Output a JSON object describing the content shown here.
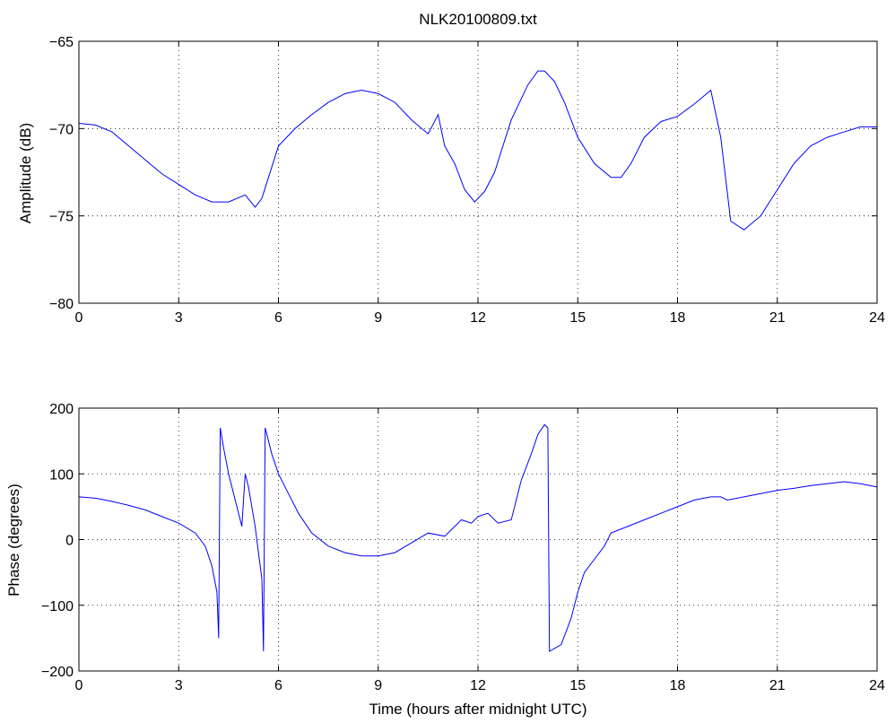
{
  "chart_data": [
    {
      "type": "line",
      "title": "NLK20100809.txt",
      "xlabel": "",
      "ylabel": "Amplitude (dB)",
      "xlim": [
        0,
        24
      ],
      "ylim": [
        -80,
        -65
      ],
      "xticks": [
        0,
        3,
        6,
        9,
        12,
        15,
        18,
        21,
        24
      ],
      "yticks": [
        -80,
        -75,
        -70,
        -65
      ],
      "grid": true,
      "series": [
        {
          "color": "#0000ff",
          "x": [
            0,
            0.5,
            1,
            1.5,
            2,
            2.5,
            3,
            3.5,
            4,
            4.5,
            5,
            5.3,
            5.5,
            6,
            6.5,
            7,
            7.5,
            8,
            8.5,
            9,
            9.5,
            10,
            10.5,
            10.8,
            11,
            11.3,
            11.6,
            11.9,
            12.2,
            12.5,
            13,
            13.5,
            13.8,
            14,
            14.3,
            14.6,
            15,
            15.5,
            16,
            16.3,
            16.6,
            17,
            17.5,
            18,
            18.5,
            19,
            19.3,
            19.6,
            20,
            20.5,
            21,
            21.5,
            22,
            22.5,
            23,
            23.5,
            24
          ],
          "y": [
            -69.7,
            -69.8,
            -70.2,
            -71,
            -71.8,
            -72.6,
            -73.2,
            -73.8,
            -74.2,
            -74.2,
            -73.8,
            -74.5,
            -74,
            -71,
            -70,
            -69.2,
            -68.5,
            -68,
            -67.8,
            -68,
            -68.5,
            -69.5,
            -70.3,
            -69.2,
            -71,
            -72,
            -73.5,
            -74.2,
            -73.6,
            -72.5,
            -69.5,
            -67.5,
            -66.7,
            -66.7,
            -67.3,
            -68.5,
            -70.5,
            -72,
            -72.8,
            -72.8,
            -72,
            -70.5,
            -69.6,
            -69.3,
            -68.6,
            -67.8,
            -70.5,
            -75.3,
            -75.8,
            -75,
            -73.5,
            -72,
            -71,
            -70.5,
            -70.2,
            -69.9,
            -69.9
          ]
        }
      ]
    },
    {
      "type": "line",
      "title": "",
      "xlabel": "Time (hours after midnight UTC)",
      "ylabel": "Phase (degrees)",
      "xlim": [
        0,
        24
      ],
      "ylim": [
        -200,
        200
      ],
      "xticks": [
        0,
        3,
        6,
        9,
        12,
        15,
        18,
        21,
        24
      ],
      "yticks": [
        -200,
        -100,
        0,
        100,
        200
      ],
      "grid": true,
      "series": [
        {
          "color": "#0000ff",
          "x": [
            0,
            0.5,
            1,
            1.5,
            2,
            2.5,
            3,
            3.5,
            3.8,
            4,
            4.15,
            4.2,
            4.25,
            4.35,
            4.5,
            4.7,
            4.9,
            5.0,
            5.1,
            5.3,
            5.5,
            5.55,
            5.6,
            5.8,
            6,
            6.3,
            6.6,
            7,
            7.5,
            8,
            8.5,
            9,
            9.5,
            10,
            10.5,
            11,
            11.3,
            11.5,
            11.8,
            12,
            12.3,
            12.6,
            13,
            13.3,
            13.6,
            13.8,
            14,
            14.1,
            14.15,
            14.5,
            14.8,
            15,
            15.2,
            15.5,
            15.8,
            16,
            16.5,
            17,
            17.5,
            18,
            18.5,
            19,
            19.3,
            19.5,
            20,
            20.5,
            21,
            21.5,
            22,
            22.5,
            23,
            23.5,
            24
          ],
          "y": [
            65,
            63,
            58,
            52,
            45,
            35,
            25,
            10,
            -10,
            -40,
            -80,
            -150,
            170,
            140,
            100,
            60,
            20,
            100,
            80,
            20,
            -60,
            -170,
            170,
            130,
            100,
            70,
            40,
            10,
            -10,
            -20,
            -25,
            -25,
            -20,
            -5,
            10,
            5,
            20,
            30,
            25,
            35,
            40,
            25,
            30,
            90,
            130,
            160,
            175,
            170,
            -170,
            -160,
            -120,
            -80,
            -50,
            -30,
            -10,
            10,
            20,
            30,
            40,
            50,
            60,
            65,
            65,
            60,
            65,
            70,
            75,
            78,
            82,
            85,
            88,
            85,
            80
          ]
        }
      ]
    }
  ]
}
